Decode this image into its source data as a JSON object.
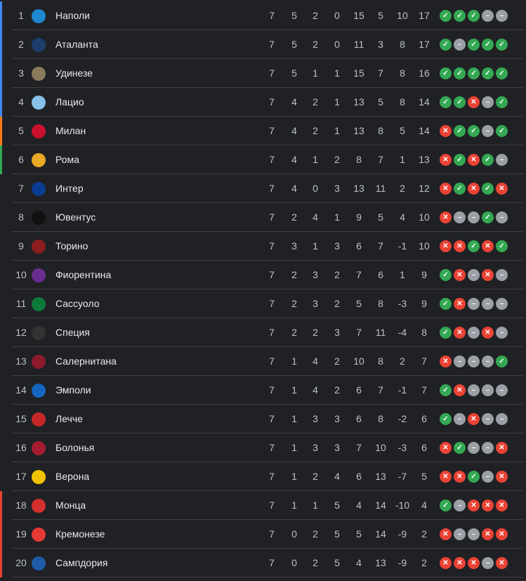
{
  "colors": {
    "cl": "#4285f4",
    "el": "#fa7b17",
    "ecl": "#34a853",
    "rel": "#ea4335",
    "win": "#34a853",
    "loss": "#ea4335",
    "draw": "#9aa0a6"
  },
  "form_icons": {
    "W": "check-icon",
    "L": "cross-icon",
    "D": "dash-icon"
  },
  "rows": [
    {
      "rank": "1",
      "team": "Наполи",
      "logo_color": "#1e88d0",
      "zone": "cl",
      "p": "7",
      "w": "5",
      "d": "2",
      "l": "0",
      "gf": "15",
      "ga": "5",
      "gd": "10",
      "pts": "17",
      "form": [
        "W",
        "W",
        "W",
        "D",
        "D"
      ]
    },
    {
      "rank": "2",
      "team": "Аталанта",
      "logo_color": "#1c3d6e",
      "zone": "cl",
      "p": "7",
      "w": "5",
      "d": "2",
      "l": "0",
      "gf": "11",
      "ga": "3",
      "gd": "8",
      "pts": "17",
      "form": [
        "W",
        "D",
        "W",
        "W",
        "W"
      ]
    },
    {
      "rank": "3",
      "team": "Удинезе",
      "logo_color": "#8a7a5c",
      "zone": "cl",
      "p": "7",
      "w": "5",
      "d": "1",
      "l": "1",
      "gf": "15",
      "ga": "7",
      "gd": "8",
      "pts": "16",
      "form": [
        "W",
        "W",
        "W",
        "W",
        "W"
      ]
    },
    {
      "rank": "4",
      "team": "Лацио",
      "logo_color": "#87c0e8",
      "zone": "cl",
      "p": "7",
      "w": "4",
      "d": "2",
      "l": "1",
      "gf": "13",
      "ga": "5",
      "gd": "8",
      "pts": "14",
      "form": [
        "W",
        "W",
        "L",
        "D",
        "W"
      ]
    },
    {
      "rank": "5",
      "team": "Милан",
      "logo_color": "#c8102e",
      "zone": "el",
      "p": "7",
      "w": "4",
      "d": "2",
      "l": "1",
      "gf": "13",
      "ga": "8",
      "gd": "5",
      "pts": "14",
      "form": [
        "L",
        "W",
        "W",
        "D",
        "W"
      ]
    },
    {
      "rank": "6",
      "team": "Рома",
      "logo_color": "#e9a825",
      "zone": "ecl",
      "p": "7",
      "w": "4",
      "d": "1",
      "l": "2",
      "gf": "8",
      "ga": "7",
      "gd": "1",
      "pts": "13",
      "form": [
        "L",
        "W",
        "L",
        "W",
        "D"
      ]
    },
    {
      "rank": "7",
      "team": "Интер",
      "logo_color": "#0a3d91",
      "zone": "",
      "p": "7",
      "w": "4",
      "d": "0",
      "l": "3",
      "gf": "13",
      "ga": "11",
      "gd": "2",
      "pts": "12",
      "form": [
        "L",
        "W",
        "L",
        "W",
        "L"
      ]
    },
    {
      "rank": "8",
      "team": "Ювентус",
      "logo_color": "#111111",
      "zone": "",
      "p": "7",
      "w": "2",
      "d": "4",
      "l": "1",
      "gf": "9",
      "ga": "5",
      "gd": "4",
      "pts": "10",
      "form": [
        "L",
        "D",
        "D",
        "W",
        "D"
      ]
    },
    {
      "rank": "9",
      "team": "Торино",
      "logo_color": "#8b1e1e",
      "zone": "",
      "p": "7",
      "w": "3",
      "d": "1",
      "l": "3",
      "gf": "6",
      "ga": "7",
      "gd": "-1",
      "pts": "10",
      "form": [
        "L",
        "L",
        "W",
        "L",
        "W"
      ]
    },
    {
      "rank": "10",
      "team": "Фиорентина",
      "logo_color": "#6a2c91",
      "zone": "",
      "p": "7",
      "w": "2",
      "d": "3",
      "l": "2",
      "gf": "7",
      "ga": "6",
      "gd": "1",
      "pts": "9",
      "form": [
        "W",
        "L",
        "D",
        "L",
        "D"
      ]
    },
    {
      "rank": "11",
      "team": "Сассуоло",
      "logo_color": "#0d7a3a",
      "zone": "",
      "p": "7",
      "w": "2",
      "d": "3",
      "l": "2",
      "gf": "5",
      "ga": "8",
      "gd": "-3",
      "pts": "9",
      "form": [
        "W",
        "L",
        "D",
        "D",
        "D"
      ]
    },
    {
      "rank": "12",
      "team": "Специя",
      "logo_color": "#333333",
      "zone": "",
      "p": "7",
      "w": "2",
      "d": "2",
      "l": "3",
      "gf": "7",
      "ga": "11",
      "gd": "-4",
      "pts": "8",
      "form": [
        "W",
        "L",
        "D",
        "L",
        "D"
      ]
    },
    {
      "rank": "13",
      "team": "Салернитана",
      "logo_color": "#8b1a2b",
      "zone": "",
      "p": "7",
      "w": "1",
      "d": "4",
      "l": "2",
      "gf": "10",
      "ga": "8",
      "gd": "2",
      "pts": "7",
      "form": [
        "L",
        "D",
        "D",
        "D",
        "W"
      ]
    },
    {
      "rank": "14",
      "team": "Эмполи",
      "logo_color": "#1565c0",
      "zone": "",
      "p": "7",
      "w": "1",
      "d": "4",
      "l": "2",
      "gf": "6",
      "ga": "7",
      "gd": "-1",
      "pts": "7",
      "form": [
        "W",
        "L",
        "D",
        "D",
        "D"
      ]
    },
    {
      "rank": "15",
      "team": "Лечче",
      "logo_color": "#c62828",
      "zone": "",
      "p": "7",
      "w": "1",
      "d": "3",
      "l": "3",
      "gf": "6",
      "ga": "8",
      "gd": "-2",
      "pts": "6",
      "form": [
        "W",
        "D",
        "L",
        "D",
        "D"
      ]
    },
    {
      "rank": "16",
      "team": "Болонья",
      "logo_color": "#a51c30",
      "zone": "",
      "p": "7",
      "w": "1",
      "d": "3",
      "l": "3",
      "gf": "7",
      "ga": "10",
      "gd": "-3",
      "pts": "6",
      "form": [
        "L",
        "W",
        "D",
        "D",
        "L"
      ]
    },
    {
      "rank": "17",
      "team": "Верона",
      "logo_color": "#f2c200",
      "zone": "",
      "p": "7",
      "w": "1",
      "d": "2",
      "l": "4",
      "gf": "6",
      "ga": "13",
      "gd": "-7",
      "pts": "5",
      "form": [
        "L",
        "L",
        "W",
        "D",
        "L"
      ]
    },
    {
      "rank": "18",
      "team": "Монца",
      "logo_color": "#d32f2f",
      "zone": "rel",
      "p": "7",
      "w": "1",
      "d": "1",
      "l": "5",
      "gf": "4",
      "ga": "14",
      "gd": "-10",
      "pts": "4",
      "form": [
        "W",
        "D",
        "L",
        "L",
        "L"
      ]
    },
    {
      "rank": "19",
      "team": "Кремонезе",
      "logo_color": "#e53935",
      "zone": "rel",
      "p": "7",
      "w": "0",
      "d": "2",
      "l": "5",
      "gf": "5",
      "ga": "14",
      "gd": "-9",
      "pts": "2",
      "form": [
        "L",
        "D",
        "D",
        "L",
        "L"
      ]
    },
    {
      "rank": "20",
      "team": "Сампдория",
      "logo_color": "#1e5aa8",
      "zone": "rel",
      "p": "7",
      "w": "0",
      "d": "2",
      "l": "5",
      "gf": "4",
      "ga": "13",
      "gd": "-9",
      "pts": "2",
      "form": [
        "L",
        "L",
        "L",
        "D",
        "L"
      ]
    }
  ]
}
